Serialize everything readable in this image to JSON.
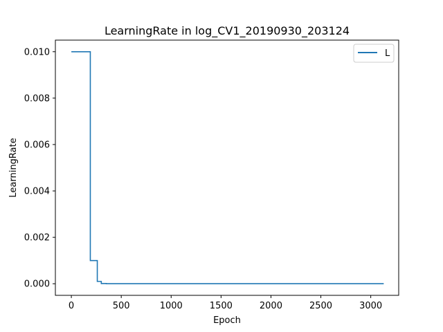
{
  "chart_data": {
    "type": "line",
    "title": "LearningRate in log_CV1_20190930_203124",
    "xlabel": "Epoch",
    "ylabel": "LearningRate",
    "xlim": [
      -160,
      3280
    ],
    "ylim": [
      -0.0005,
      0.0105
    ],
    "x_ticks": [
      0,
      500,
      1000,
      1500,
      2000,
      2500,
      3000
    ],
    "x_tick_labels": [
      "0",
      "500",
      "1000",
      "1500",
      "2000",
      "2500",
      "3000"
    ],
    "y_ticks": [
      0.0,
      0.002,
      0.004,
      0.006,
      0.008,
      0.01
    ],
    "y_tick_labels": [
      "0.000",
      "0.002",
      "0.004",
      "0.006",
      "0.008",
      "0.010"
    ],
    "grid": false,
    "legend_position": "top-right",
    "series": [
      {
        "name": "L",
        "color": "#1f77b4",
        "x": [
          0,
          190,
          190,
          260,
          260,
          300,
          300,
          350,
          350,
          3130
        ],
        "y": [
          0.01,
          0.01,
          0.001,
          0.001,
          0.0001,
          0.0001,
          1e-05,
          1e-05,
          1e-07,
          1e-07
        ]
      }
    ]
  }
}
